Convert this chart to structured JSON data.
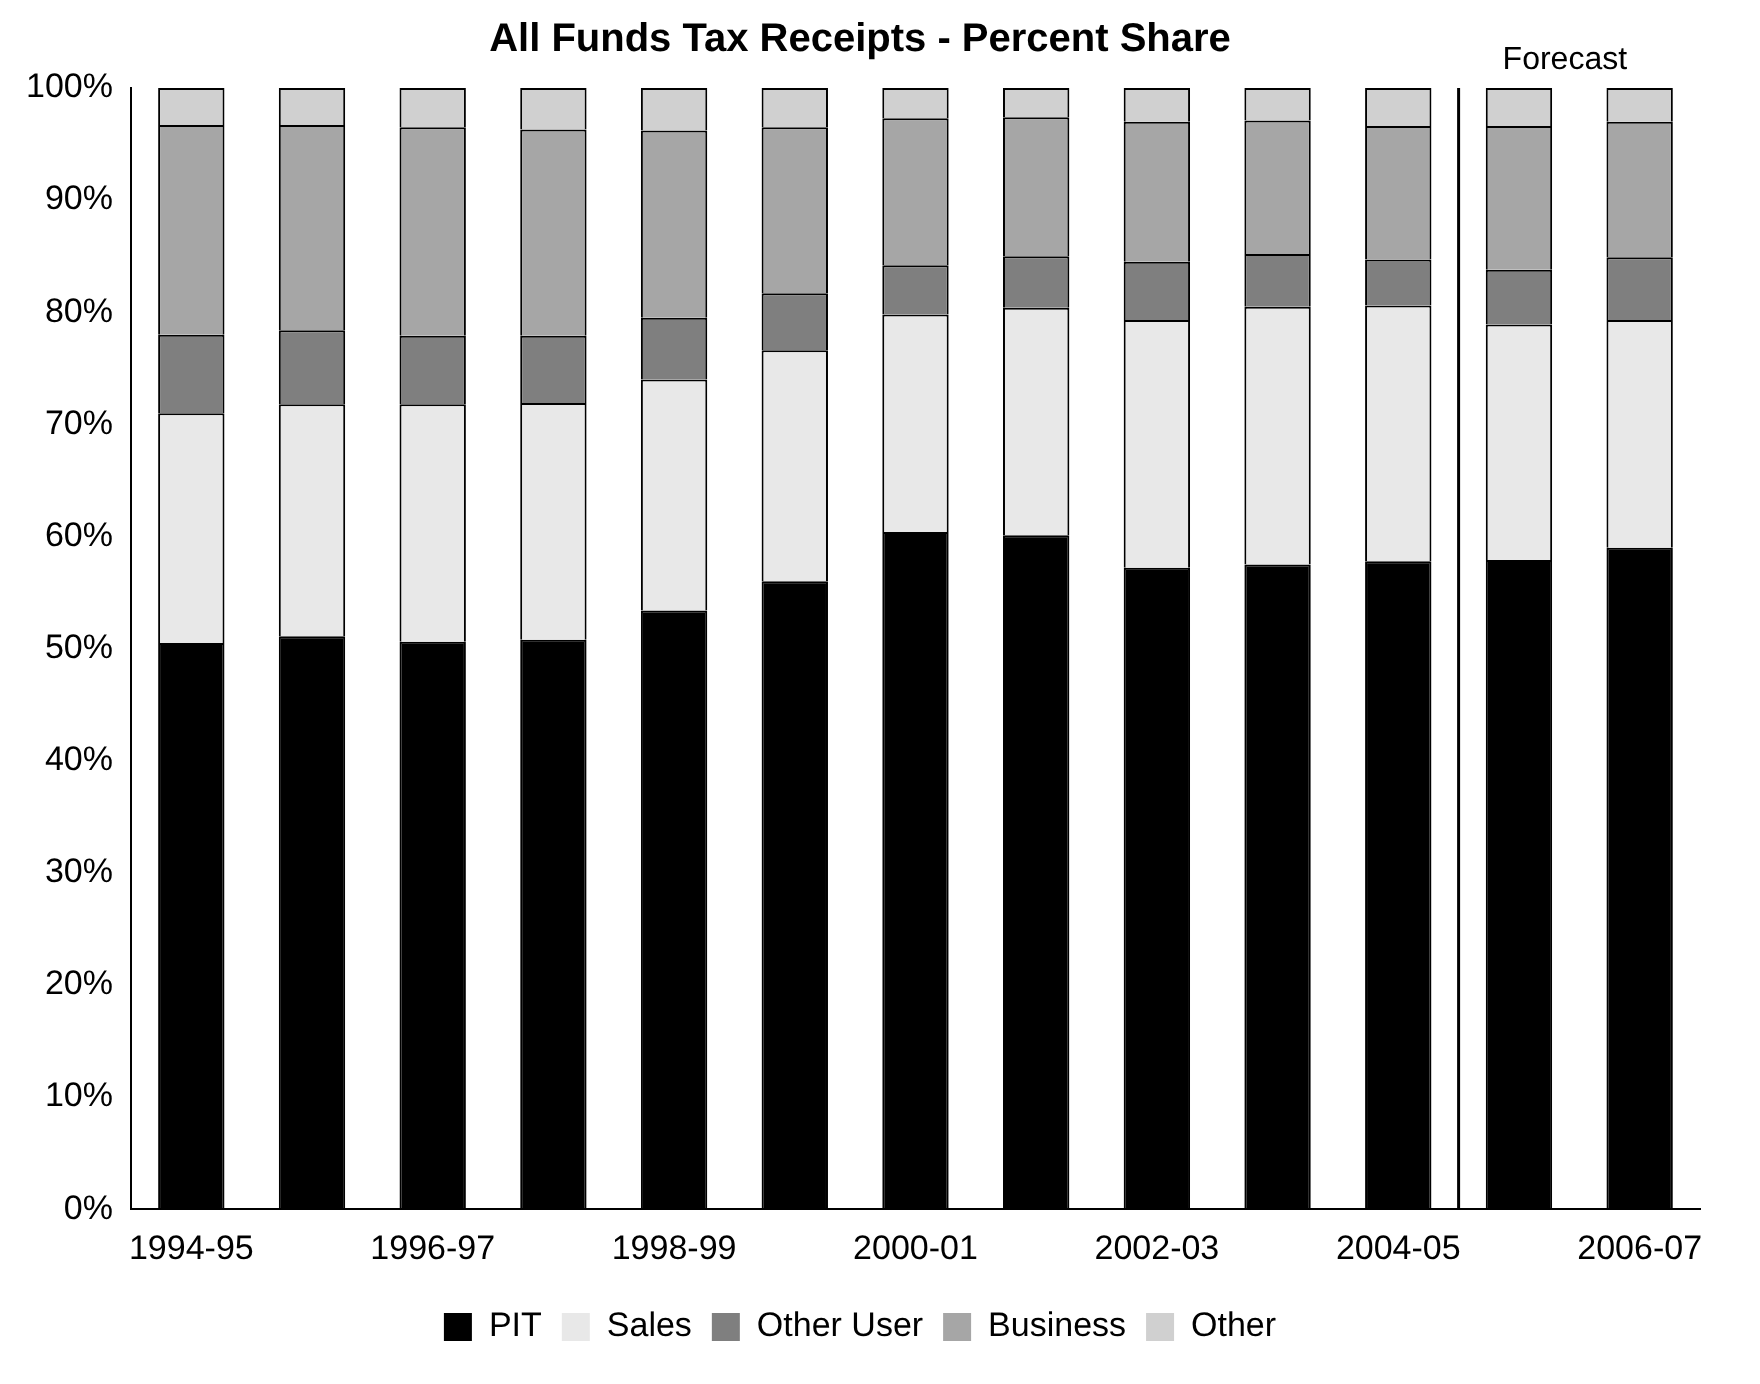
{
  "chart_data": {
    "type": "bar",
    "stacked": true,
    "title": "All Funds Tax Receipts - Percent Share",
    "categories": [
      "1994-95",
      null,
      "1996-97",
      null,
      "1998-99",
      null,
      "2000-01",
      null,
      "2002-03",
      null,
      "2004-05",
      null,
      "2006-07"
    ],
    "series": [
      {
        "name": "PIT",
        "color": "#000000",
        "values": [
          50.5,
          51.1,
          50.6,
          50.8,
          53.4,
          56.0,
          60.4,
          60.1,
          57.2,
          57.5,
          57.8,
          57.9,
          59.0
        ]
      },
      {
        "name": "Sales",
        "color": "#e8e8e8",
        "values": [
          20.5,
          20.7,
          21.2,
          21.1,
          20.6,
          20.6,
          19.4,
          20.3,
          22.1,
          23.0,
          22.8,
          21.0,
          20.3
        ]
      },
      {
        "name": "Other User",
        "color": "#7f7f7f",
        "values": [
          7.0,
          6.6,
          6.1,
          6.0,
          5.5,
          5.1,
          4.4,
          4.6,
          5.2,
          4.7,
          4.1,
          4.9,
          5.6
        ]
      },
      {
        "name": "Business",
        "color": "#a6a6a6",
        "values": [
          18.7,
          18.3,
          18.6,
          18.4,
          16.7,
          14.8,
          13.1,
          12.4,
          12.5,
          11.9,
          11.9,
          12.8,
          12.1
        ]
      },
      {
        "name": "Other",
        "color": "#d0d0d0",
        "values": [
          3.3,
          3.3,
          3.5,
          3.7,
          3.8,
          3.5,
          2.7,
          2.6,
          3.0,
          2.9,
          3.4,
          3.4,
          3.0
        ]
      }
    ],
    "ylim": [
      0,
      100
    ],
    "yticks": [
      {
        "value": 0,
        "label": "0%"
      },
      {
        "value": 10,
        "label": "10%"
      },
      {
        "value": 20,
        "label": "20%"
      },
      {
        "value": 30,
        "label": "30%"
      },
      {
        "value": 40,
        "label": "40%"
      },
      {
        "value": 50,
        "label": "50%"
      },
      {
        "value": 60,
        "label": "60%"
      },
      {
        "value": 70,
        "label": "70%"
      },
      {
        "value": 80,
        "label": "80%"
      },
      {
        "value": 90,
        "label": "90%"
      },
      {
        "value": 100,
        "label": "100%"
      }
    ],
    "annotations": [
      "Forecast"
    ],
    "grid": false,
    "legend": "bottom"
  }
}
